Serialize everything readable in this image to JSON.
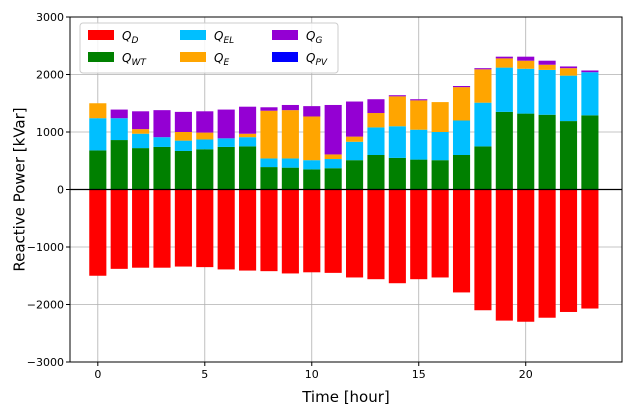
{
  "chart_data": {
    "type": "bar",
    "stacked": true,
    "xlabel": "Time [hour]",
    "ylabel": "Reactive Power [kVar]",
    "xlim": [
      -1.3,
      24.5
    ],
    "ylim": [
      -3000,
      3000
    ],
    "xticks": [
      0,
      5,
      10,
      15,
      20
    ],
    "yticks": [
      -3000,
      -2000,
      -1000,
      0,
      1000,
      2000,
      3000
    ],
    "grid": true,
    "legend": "top-left",
    "x": [
      0,
      1,
      2,
      3,
      4,
      5,
      6,
      7,
      8,
      9,
      10,
      11,
      12,
      13,
      14,
      15,
      16,
      17,
      18,
      19,
      20,
      21,
      22,
      23
    ],
    "series": [
      {
        "name": "Q",
        "sub": "D",
        "color": "#ff0000",
        "values": [
          -1500,
          -1380,
          -1360,
          -1360,
          -1340,
          -1350,
          -1390,
          -1410,
          -1420,
          -1460,
          -1440,
          -1450,
          -1530,
          -1560,
          -1630,
          -1560,
          -1530,
          -1790,
          -2100,
          -2280,
          -2300,
          -2230,
          -2130,
          -2070
        ]
      },
      {
        "name": "Q",
        "sub": "WT",
        "color": "#008000",
        "values": [
          680,
          860,
          720,
          740,
          670,
          700,
          740,
          750,
          390,
          380,
          350,
          370,
          510,
          600,
          550,
          520,
          510,
          600,
          750,
          1350,
          1320,
          1300,
          1190,
          1290
        ]
      },
      {
        "name": "Q",
        "sub": "EL",
        "color": "#00bfff",
        "values": [
          560,
          380,
          250,
          170,
          180,
          170,
          150,
          160,
          150,
          160,
          160,
          160,
          320,
          480,
          550,
          520,
          490,
          600,
          760,
          770,
          780,
          780,
          790,
          750
        ]
      },
      {
        "name": "Q",
        "sub": "E",
        "color": "#ffa500",
        "values": [
          260,
          0,
          80,
          0,
          150,
          120,
          0,
          60,
          830,
          840,
          760,
          80,
          90,
          250,
          520,
          510,
          520,
          580,
          580,
          160,
          140,
          90,
          130,
          0
        ]
      },
      {
        "name": "Q",
        "sub": "G",
        "color": "#9400d3",
        "values": [
          0,
          150,
          310,
          470,
          350,
          370,
          500,
          470,
          60,
          90,
          180,
          860,
          610,
          240,
          20,
          20,
          0,
          20,
          20,
          30,
          70,
          70,
          30,
          30
        ]
      },
      {
        "name": "Q",
        "sub": "PV",
        "color": "#0000ff",
        "values": [
          0,
          0,
          0,
          0,
          0,
          0,
          0,
          0,
          0,
          0,
          0,
          0,
          0,
          0,
          0,
          0,
          0,
          0,
          0,
          0,
          0,
          0,
          0,
          0
        ]
      }
    ]
  }
}
